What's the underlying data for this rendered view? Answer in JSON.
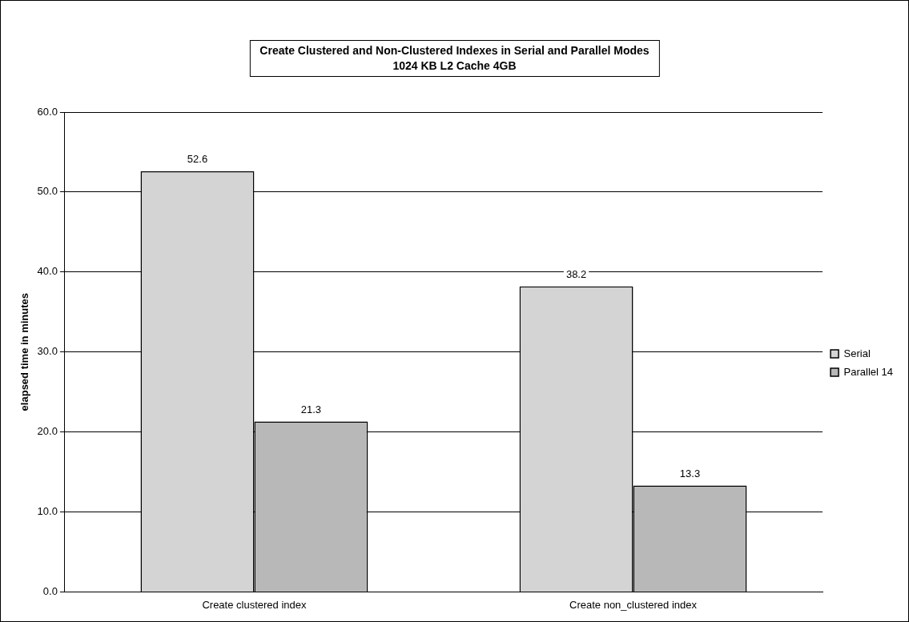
{
  "chart_data": {
    "type": "bar",
    "title": "Create Clustered and Non-Clustered Indexes in Serial and Parallel Modes",
    "subtitle": "1024 KB L2 Cache 4GB",
    "ylabel": "elapsed time in minutes",
    "categories": [
      "Create clustered index",
      "Create non_clustered index"
    ],
    "series": [
      {
        "name": "Serial",
        "color": "#d4d4d4",
        "values": [
          52.6,
          38.2
        ]
      },
      {
        "name": "Parallel 14",
        "color": "#b8b8b8",
        "values": [
          21.3,
          13.3
        ]
      }
    ],
    "ylim": [
      0,
      60
    ],
    "yticks": [
      {
        "value": 0,
        "label": "0.0"
      },
      {
        "value": 10,
        "label": "10.0"
      },
      {
        "value": 20,
        "label": "20.0"
      },
      {
        "value": 30,
        "label": "30.0"
      },
      {
        "value": 40,
        "label": "40.0"
      },
      {
        "value": 50,
        "label": "50.0"
      },
      {
        "value": 60,
        "label": "60.0"
      }
    ],
    "grid": "y",
    "legend": "right",
    "data_labels": true
  }
}
